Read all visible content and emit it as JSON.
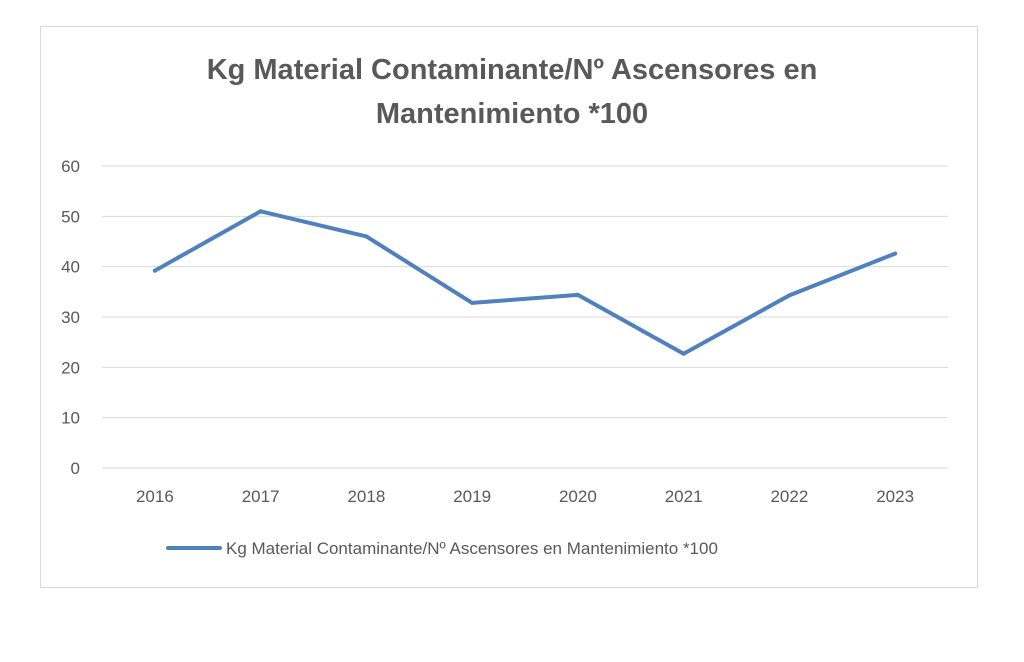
{
  "chart_data": {
    "type": "line",
    "title_lines": [
      "Kg Material Contaminante/Nº Ascensores en",
      "Mantenimiento *100"
    ],
    "categories": [
      "2016",
      "2017",
      "2018",
      "2019",
      "2020",
      "2021",
      "2022",
      "2023"
    ],
    "series": [
      {
        "name": "Kg Material Contaminante/Nº Ascensores en Mantenimiento *100",
        "values": [
          39.2,
          51,
          46,
          32.8,
          34.4,
          22.7,
          34.3,
          42.6
        ],
        "color": "#4f81bd"
      }
    ],
    "yticks": [
      "0",
      "10",
      "20",
      "30",
      "40",
      "50",
      "60"
    ],
    "ylim": [
      0,
      60
    ],
    "grid": true,
    "legend_position": "bottom"
  }
}
